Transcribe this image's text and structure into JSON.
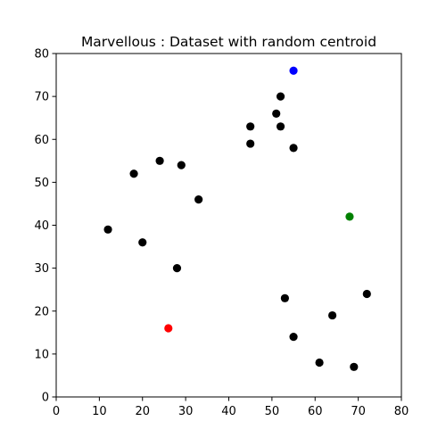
{
  "chart_data": {
    "type": "scatter",
    "title": "Marvellous : Dataset with random centroid",
    "xlabel": "",
    "ylabel": "",
    "xlim": [
      0,
      80
    ],
    "ylim": [
      0,
      80
    ],
    "xticks": [
      0,
      10,
      20,
      30,
      40,
      50,
      60,
      70,
      80
    ],
    "yticks": [
      0,
      10,
      20,
      30,
      40,
      50,
      60,
      70,
      80
    ],
    "grid": false,
    "legend": "none",
    "series": [
      {
        "color": "#000000",
        "points": [
          [
            12,
            39
          ],
          [
            20,
            36
          ],
          [
            28,
            30
          ],
          [
            18,
            52
          ],
          [
            29,
            54
          ],
          [
            33,
            46
          ],
          [
            24,
            55
          ],
          [
            45,
            59
          ],
          [
            45,
            63
          ],
          [
            52,
            70
          ],
          [
            51,
            66
          ],
          [
            52,
            63
          ],
          [
            55,
            58
          ],
          [
            53,
            23
          ],
          [
            55,
            14
          ],
          [
            61,
            8
          ],
          [
            64,
            19
          ],
          [
            69,
            7
          ],
          [
            72,
            24
          ]
        ]
      },
      {
        "color": "#ff0000",
        "points": [
          [
            26,
            16
          ]
        ]
      },
      {
        "color": "#008000",
        "points": [
          [
            68,
            42
          ]
        ]
      },
      {
        "color": "#0000ff",
        "points": [
          [
            55,
            76
          ]
        ]
      }
    ]
  }
}
